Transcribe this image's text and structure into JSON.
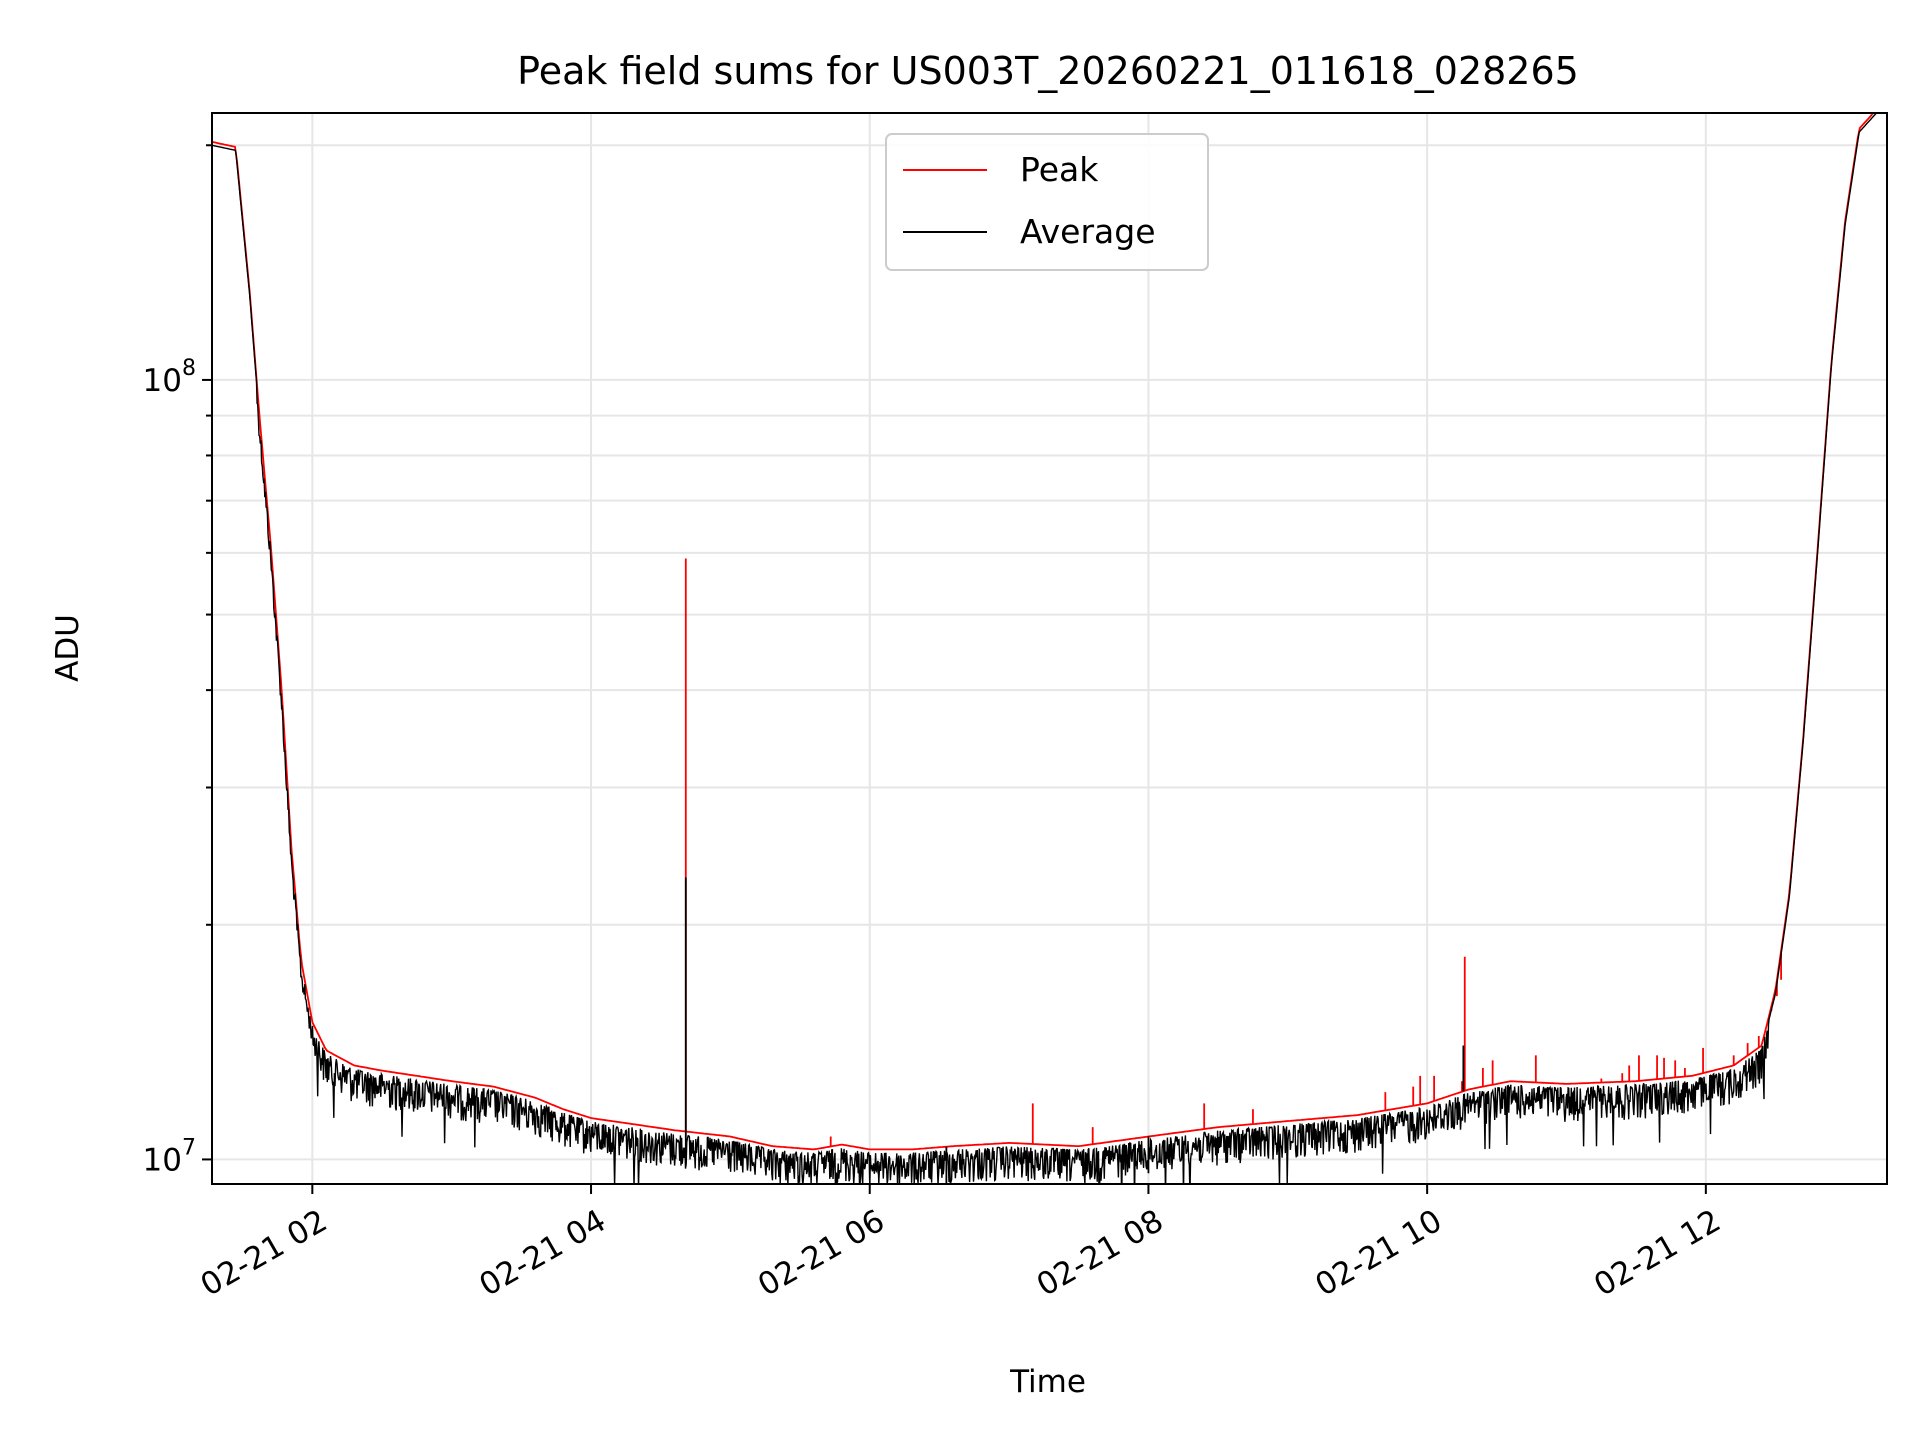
{
  "chart_data": {
    "type": "line",
    "title": "Peak field sums for US003T_20260221_011618_028265",
    "xlabel": "Time",
    "ylabel": "ADU",
    "yscale": "log",
    "xlim": [
      1.28,
      13.3
    ],
    "ylim": [
      9300000.0,
      220000000.0
    ],
    "grid": true,
    "legend_position": "top-center",
    "x_ticks": [
      {
        "value": 2,
        "label": "02-21 02"
      },
      {
        "value": 4,
        "label": "02-21 04"
      },
      {
        "value": 6,
        "label": "02-21 06"
      },
      {
        "value": 8,
        "label": "02-21 08"
      },
      {
        "value": 10,
        "label": "02-21 10"
      },
      {
        "value": 12,
        "label": "02-21 12"
      }
    ],
    "y_major_ticks": [
      {
        "value": 10000000,
        "base": "10",
        "exp": "7"
      },
      {
        "value": 100000000,
        "base": "10",
        "exp": "8"
      }
    ],
    "series": [
      {
        "name": "Peak",
        "color": "#ff0000"
      },
      {
        "name": "Average",
        "color": "#000000"
      }
    ],
    "baseline": [
      [
        1.28,
        202000000.0
      ],
      [
        1.45,
        199000000.0
      ],
      [
        1.55,
        130000000.0
      ],
      [
        1.62,
        90000000.0
      ],
      [
        1.7,
        62000000.0
      ],
      [
        1.78,
        40000000.0
      ],
      [
        1.85,
        25000000.0
      ],
      [
        1.92,
        18000000.0
      ],
      [
        2.0,
        15000000.0
      ],
      [
        2.1,
        13800000.0
      ],
      [
        2.3,
        13200000.0
      ],
      [
        2.5,
        13000000.0
      ],
      [
        2.75,
        12800000.0
      ],
      [
        3.0,
        12600000.0
      ],
      [
        3.3,
        12400000.0
      ],
      [
        3.6,
        12000000.0
      ],
      [
        3.8,
        11600000.0
      ],
      [
        4.0,
        11300000.0
      ],
      [
        4.3,
        11100000.0
      ],
      [
        4.6,
        10900000.0
      ],
      [
        5.0,
        10700000.0
      ],
      [
        5.3,
        10400000.0
      ],
      [
        5.6,
        10300000.0
      ],
      [
        5.8,
        10450000.0
      ],
      [
        6.0,
        10300000.0
      ],
      [
        6.3,
        10300000.0
      ],
      [
        6.6,
        10400000.0
      ],
      [
        7.0,
        10500000.0
      ],
      [
        7.5,
        10400000.0
      ],
      [
        8.0,
        10700000.0
      ],
      [
        8.5,
        11000000.0
      ],
      [
        9.0,
        11200000.0
      ],
      [
        9.5,
        11400000.0
      ],
      [
        10.0,
        11800000.0
      ],
      [
        10.3,
        12300000.0
      ],
      [
        10.6,
        12600000.0
      ],
      [
        11.0,
        12500000.0
      ],
      [
        11.5,
        12600000.0
      ],
      [
        11.9,
        12800000.0
      ],
      [
        12.2,
        13200000.0
      ],
      [
        12.4,
        14000000.0
      ],
      [
        12.5,
        16500000.0
      ],
      [
        12.6,
        22000000.0
      ],
      [
        12.7,
        35000000.0
      ],
      [
        12.8,
        60000000.0
      ],
      [
        12.9,
        105000000.0
      ],
      [
        13.0,
        160000000.0
      ],
      [
        13.1,
        210000000.0
      ],
      [
        13.3,
        230000000.0
      ]
    ],
    "peak_spikes": [
      [
        4.68,
        59000000.0
      ],
      [
        5.72,
        10700000.0
      ],
      [
        7.17,
        11800000.0
      ],
      [
        7.6,
        11000000.0
      ],
      [
        8.4,
        11800000.0
      ],
      [
        8.75,
        11600000.0
      ],
      [
        9.7,
        12200000.0
      ],
      [
        9.9,
        12400000.0
      ],
      [
        9.95,
        12800000.0
      ],
      [
        10.05,
        12800000.0
      ],
      [
        10.25,
        12600000.0
      ],
      [
        10.27,
        18200000.0
      ],
      [
        10.4,
        13100000.0
      ],
      [
        10.47,
        13400000.0
      ],
      [
        10.78,
        13600000.0
      ],
      [
        11.25,
        12700000.0
      ],
      [
        11.4,
        12900000.0
      ],
      [
        11.45,
        13200000.0
      ],
      [
        11.52,
        13600000.0
      ],
      [
        11.65,
        13600000.0
      ],
      [
        11.7,
        13500000.0
      ],
      [
        11.78,
        13400000.0
      ],
      [
        11.85,
        13100000.0
      ],
      [
        11.98,
        13900000.0
      ],
      [
        12.2,
        13600000.0
      ],
      [
        12.3,
        14100000.0
      ],
      [
        12.38,
        14400000.0
      ],
      [
        12.47,
        15500000.0
      ],
      [
        12.51,
        16200000.0
      ],
      [
        12.54,
        17000000.0
      ]
    ],
    "average_spikes": [
      [
        4.68,
        23000000.0
      ],
      [
        4.68,
        10000000.0
      ],
      [
        10.26,
        14000000.0
      ],
      [
        6.55,
        9300000.0
      ],
      [
        8.0,
        9600000.0
      ]
    ],
    "noise_band": {
      "from": 2.0,
      "to": 12.45,
      "depth_fraction": 0.1
    }
  }
}
